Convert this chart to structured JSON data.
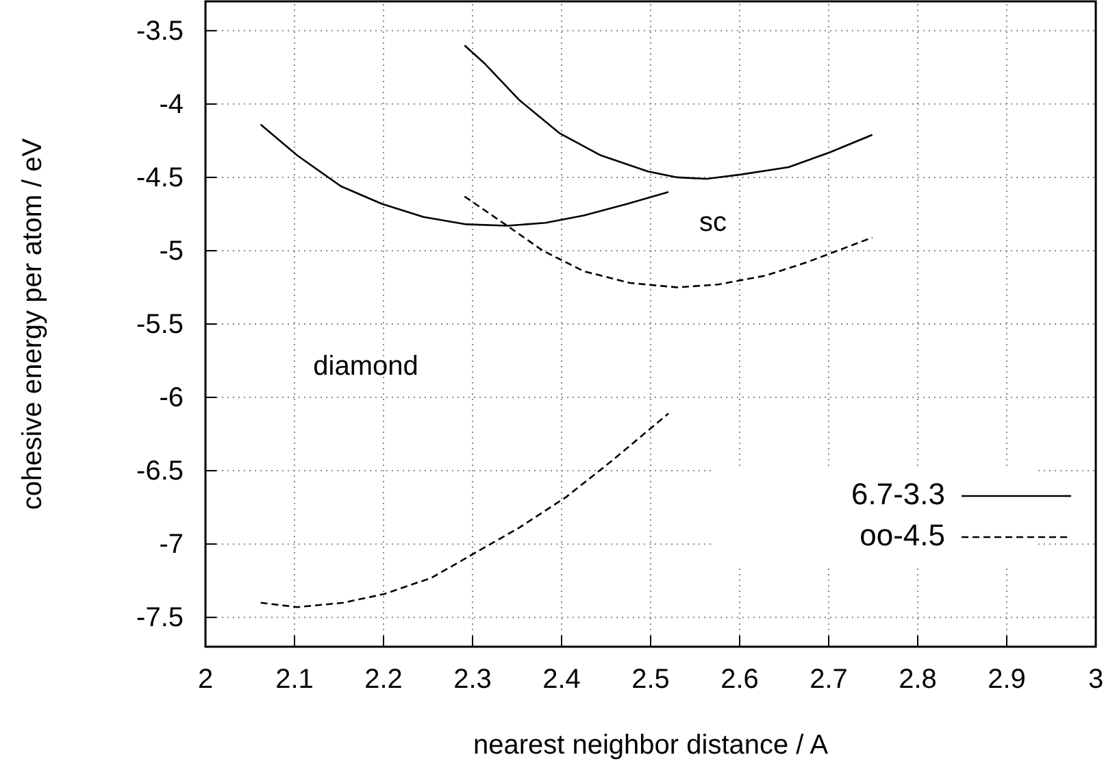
{
  "chart_data": {
    "type": "line",
    "xlabel": "nearest neighbor distance / A",
    "ylabel": "cohesive energy per atom / eV",
    "xlim": [
      2,
      3
    ],
    "xticks": [
      2,
      2.1,
      2.2,
      2.3,
      2.4,
      2.5,
      2.6,
      2.7,
      2.8,
      2.9,
      3
    ],
    "ylim": [
      -7.7,
      -3.3
    ],
    "yticks": [
      -3.5,
      -4,
      -4.5,
      -5,
      -5.5,
      -6,
      -6.5,
      -7,
      -7.5
    ],
    "grid": true,
    "legend": "bottom right",
    "marker": "none",
    "series": [
      {
        "name": "6.7-3.3",
        "color": "#000000",
        "line_style": "solid",
        "x": [
          2.062,
          2.103,
          2.152,
          2.198,
          2.245,
          2.293,
          2.339,
          2.382,
          2.425,
          2.474,
          2.52
        ],
        "values": [
          -4.14,
          -4.35,
          -4.56,
          -4.68,
          -4.77,
          -4.82,
          -4.83,
          -4.81,
          -4.76,
          -4.68,
          -4.6
        ]
      },
      {
        "color": "#000000",
        "line_style": "solid",
        "x": [
          2.291,
          2.313,
          2.352,
          2.398,
          2.444,
          2.497,
          2.53,
          2.563,
          2.602,
          2.655,
          2.701,
          2.749
        ],
        "values": [
          -3.6,
          -3.72,
          -3.97,
          -4.2,
          -4.35,
          -4.46,
          -4.5,
          -4.51,
          -4.48,
          -4.43,
          -4.33,
          -4.21
        ]
      },
      {
        "name": "oo-4.5",
        "color": "#000000",
        "line_style": "dashed",
        "x": [
          2.291,
          2.339,
          2.379,
          2.425,
          2.477,
          2.53,
          2.576,
          2.629,
          2.675,
          2.749
        ],
        "values": [
          -4.63,
          -4.83,
          -5.0,
          -5.14,
          -5.22,
          -5.25,
          -5.23,
          -5.17,
          -5.08,
          -4.91
        ]
      },
      {
        "color": "#000000",
        "line_style": "dashed",
        "x": [
          2.062,
          2.103,
          2.155,
          2.201,
          2.254,
          2.3,
          2.352,
          2.405,
          2.457,
          2.52
        ],
        "values": [
          -7.4,
          -7.43,
          -7.4,
          -7.34,
          -7.23,
          -7.07,
          -6.89,
          -6.68,
          -6.43,
          -6.11
        ]
      }
    ],
    "annotations": [
      "sc",
      "diamond"
    ]
  }
}
